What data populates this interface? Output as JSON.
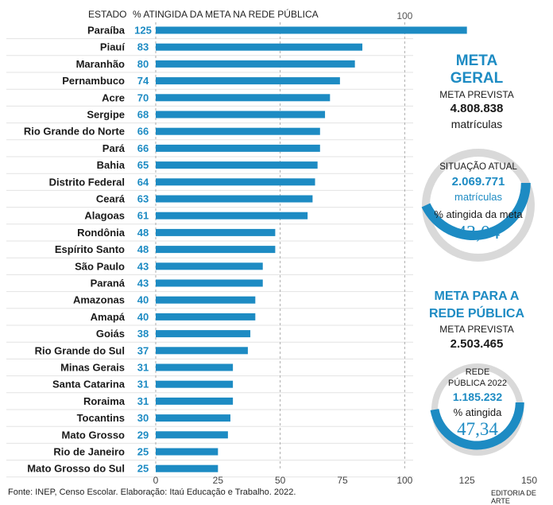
{
  "chart_data": {
    "type": "bar",
    "orientation": "horizontal",
    "header_category": "ESTADO",
    "header_value": "% ATINGIDA DA META NA REDE PÚBLICA",
    "reference_label": "100",
    "categories": [
      "Paraíba",
      "Piauí",
      "Maranhão",
      "Pernambuco",
      "Acre",
      "Sergipe",
      "Rio Grande do Norte",
      "Pará",
      "Bahia",
      "Distrito Federal",
      "Ceará",
      "Alagoas",
      "Rondônia",
      "Espírito Santo",
      "São Paulo",
      "Paraná",
      "Amazonas",
      "Amapá",
      "Goiás",
      "Rio Grande do Sul",
      "Minas Gerais",
      "Santa Catarina",
      "Roraima",
      "Tocantins",
      "Mato Grosso",
      "Rio de Janeiro",
      "Mato Grosso do Sul"
    ],
    "values": [
      125,
      83,
      80,
      74,
      70,
      68,
      66,
      66,
      65,
      64,
      63,
      61,
      48,
      48,
      43,
      43,
      40,
      40,
      38,
      37,
      31,
      31,
      31,
      30,
      29,
      25,
      25
    ],
    "xlim": [
      0,
      150
    ],
    "xticks": [
      0,
      25,
      50,
      75,
      100,
      125,
      150
    ],
    "grid": "vertical dashed at 50 and 100",
    "bar_color": "#1d8bc3"
  },
  "panel": {
    "meta_geral": {
      "title_line1": "META",
      "title_line2": "GERAL",
      "prevista_label": "META PREVISTA",
      "prevista_value": "4.808.838",
      "prevista_unit": "matrículas",
      "situacao_label": "SITUAÇÃO ATUAL",
      "situacao_value": "2.069.771",
      "situacao_unit": "matrículas",
      "pct_label": "% atingida da meta",
      "pct_value": "43,04",
      "pct_fraction": 0.4304
    },
    "meta_publica": {
      "title_line1": "META PARA A",
      "title_line2": "REDE PÚBLICA",
      "prevista_label": "META PREVISTA",
      "prevista_value": "2.503.465",
      "rede_label_line1": "REDE",
      "rede_label_line2": "PÚBLICA 2022",
      "rede_value": "1.185.232",
      "pct_label": "% atingida",
      "pct_value": "47,34",
      "pct_fraction": 0.4734
    }
  },
  "footer": {
    "source": "Fonte: INEP, Censo Escolar. Elaboração: Itaú Educação e Trabalho. 2022.",
    "credit": "EDITORIA DE ARTE"
  }
}
